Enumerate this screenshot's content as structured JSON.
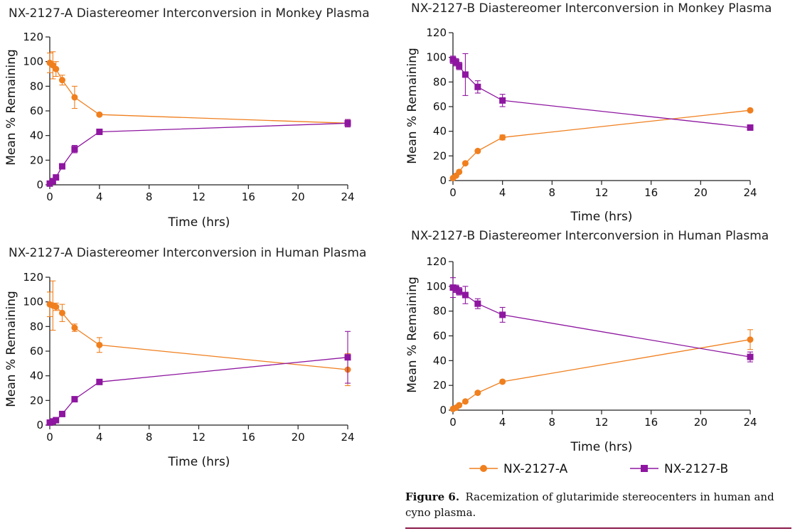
{
  "colors": {
    "series_a": "#F07F1E",
    "series_b": "#8E16A0",
    "axis": "#222222",
    "rule": "#8B1A4A"
  },
  "chart_data": [
    {
      "type": "line",
      "title": "NX-2127-A Diastereomer Interconversion in Monkey Plasma",
      "xlabel": "Time (hrs)",
      "ylabel": "Mean % Remaining",
      "xlim": [
        0,
        24
      ],
      "ylim": [
        0,
        120
      ],
      "xticks": [
        0,
        4,
        8,
        12,
        16,
        20,
        24
      ],
      "yticks": [
        0,
        20,
        40,
        60,
        80,
        100,
        120
      ],
      "series": [
        {
          "name": "NX-2127-A",
          "marker": "circle",
          "x": [
            0,
            0.25,
            0.5,
            1,
            2,
            4,
            24
          ],
          "y": [
            99,
            97,
            94,
            85,
            71,
            57,
            50
          ],
          "err": [
            8,
            11,
            6,
            4,
            9,
            1,
            3
          ]
        },
        {
          "name": "NX-2127-B",
          "marker": "square",
          "x": [
            0,
            0.25,
            0.5,
            1,
            2,
            4,
            24
          ],
          "y": [
            1,
            3,
            6,
            15,
            29,
            43,
            50
          ],
          "err": [
            0.5,
            1,
            1,
            1,
            3,
            1,
            3
          ]
        }
      ]
    },
    {
      "type": "line",
      "title": "NX-2127-B Diastereomer Interconversion in Monkey Plasma",
      "xlabel": "Time (hrs)",
      "ylabel": "Mean % Remaining",
      "xlim": [
        0,
        24
      ],
      "ylim": [
        0,
        120
      ],
      "xticks": [
        0,
        4,
        8,
        12,
        16,
        20,
        24
      ],
      "yticks": [
        0,
        20,
        40,
        60,
        80,
        100,
        120
      ],
      "series": [
        {
          "name": "NX-2127-A",
          "marker": "circle",
          "x": [
            0,
            0.25,
            0.5,
            1,
            2,
            4,
            24
          ],
          "y": [
            2,
            4,
            7,
            14,
            24,
            35,
            57
          ],
          "err": [
            0.5,
            1,
            1,
            1,
            1,
            2,
            1
          ]
        },
        {
          "name": "NX-2127-B",
          "marker": "square",
          "x": [
            0,
            0.25,
            0.5,
            1,
            2,
            4,
            24
          ],
          "y": [
            98,
            96,
            93,
            86,
            76,
            65,
            43
          ],
          "err": [
            3,
            3,
            3,
            17,
            5,
            5,
            1
          ]
        }
      ]
    },
    {
      "type": "line",
      "title": "NX-2127-A Diastereomer Interconversion in Human Plasma",
      "xlabel": "Time (hrs)",
      "ylabel": "Mean % Remaining",
      "xlim": [
        0,
        24
      ],
      "ylim": [
        0,
        120
      ],
      "xticks": [
        0,
        4,
        8,
        12,
        16,
        20,
        24
      ],
      "yticks": [
        0,
        20,
        40,
        60,
        80,
        100,
        120
      ],
      "series": [
        {
          "name": "NX-2127-A",
          "marker": "circle",
          "x": [
            0,
            0.25,
            0.5,
            1,
            2,
            4,
            24
          ],
          "y": [
            98,
            97,
            96,
            91,
            79,
            65,
            45
          ],
          "err": [
            10,
            20,
            3,
            7,
            3,
            6,
            13
          ]
        },
        {
          "name": "NX-2127-B",
          "marker": "square",
          "x": [
            0,
            0.25,
            0.5,
            1,
            2,
            4,
            24
          ],
          "y": [
            2,
            3,
            4,
            9,
            21,
            35,
            55
          ],
          "err": [
            0.5,
            1,
            1,
            1,
            1,
            1,
            21
          ]
        }
      ]
    },
    {
      "type": "line",
      "title": "NX-2127-B Diastereomer Interconversion in Human Plasma",
      "xlabel": "Time (hrs)",
      "ylabel": "Mean % Remaining",
      "xlim": [
        0,
        24
      ],
      "ylim": [
        0,
        120
      ],
      "xticks": [
        0,
        4,
        8,
        12,
        16,
        20,
        24
      ],
      "yticks": [
        0,
        20,
        40,
        60,
        80,
        100,
        120
      ],
      "series": [
        {
          "name": "NX-2127-A",
          "marker": "circle",
          "x": [
            0,
            0.25,
            0.5,
            1,
            2,
            4,
            24
          ],
          "y": [
            1,
            2,
            4,
            7,
            14,
            23,
            57
          ],
          "err": [
            0.5,
            0.5,
            1,
            1,
            1,
            1,
            8
          ]
        },
        {
          "name": "NX-2127-B",
          "marker": "square",
          "x": [
            0,
            0.25,
            0.5,
            1,
            2,
            4,
            24
          ],
          "y": [
            99,
            98,
            96,
            93,
            86,
            77,
            43
          ],
          "err": [
            8,
            3,
            3,
            7,
            4,
            6,
            4
          ]
        }
      ]
    }
  ],
  "legend": {
    "items": [
      "NX-2127-A",
      "NX-2127-B"
    ]
  },
  "caption": {
    "label": "Figure 6.",
    "line1": "Racemization of glutarimide stereocenters in human and",
    "line2": "cyno plasma."
  }
}
